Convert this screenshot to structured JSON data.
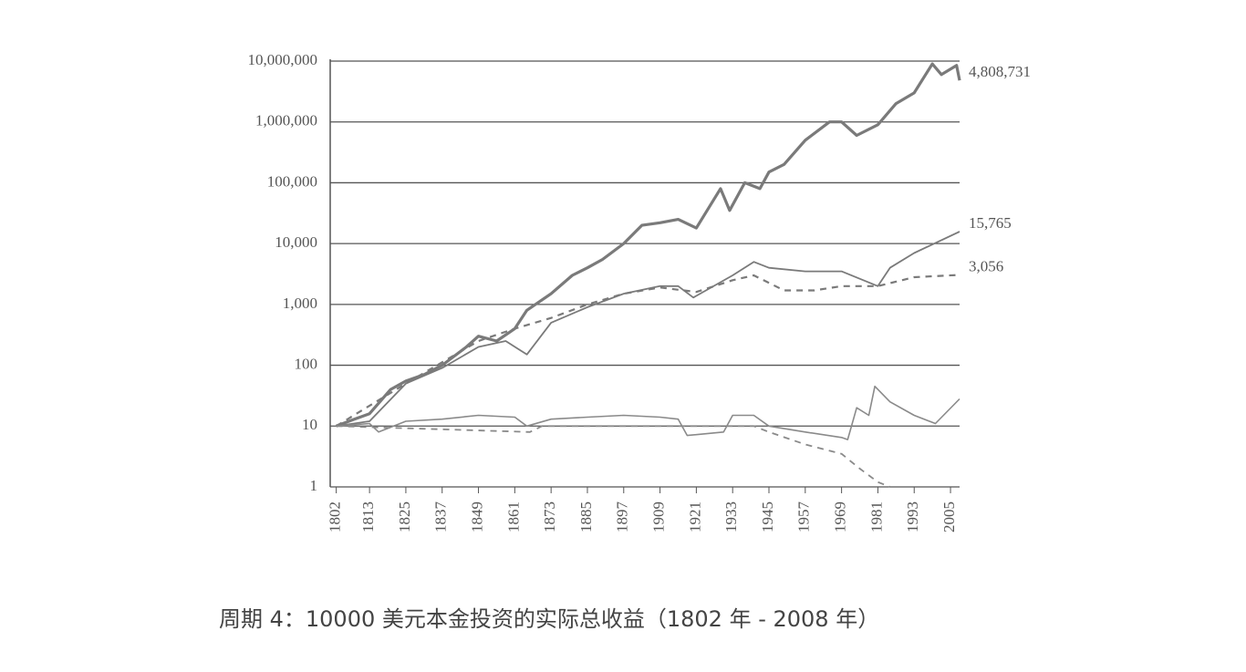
{
  "chart_data": {
    "type": "line",
    "caption": "周期 4：10000 美元本金投资的实际总收益（1802 年 - 2008 年）",
    "log_y": true,
    "grid": true,
    "color": "#7a7a7a",
    "xlim": [
      1800,
      2008
    ],
    "xticks": [
      1802,
      1813,
      1825,
      1837,
      1849,
      1861,
      1873,
      1885,
      1897,
      1909,
      1921,
      1933,
      1945,
      1957,
      1969,
      1981,
      1993,
      2005
    ],
    "ylim": [
      1,
      10000000
    ],
    "yticks": [
      1,
      10,
      100,
      {
        "value": 1000,
        "label": "1,000"
      },
      {
        "value": 10000,
        "label": "10,000"
      },
      {
        "value": 100000,
        "label": "100,000"
      },
      {
        "value": 1000000,
        "label": "1,000,000"
      },
      {
        "value": 10000000,
        "label": "10,000,000"
      }
    ],
    "series": [
      {
        "color": "#7a7a7a",
        "width": 3.2,
        "dash": false,
        "x": [
          1802,
          1808,
          1813,
          1820,
          1825,
          1831,
          1837,
          1845,
          1849,
          1855,
          1861,
          1865,
          1873,
          1880,
          1885,
          1890,
          1897,
          1903,
          1909,
          1915,
          1921,
          1929,
          1932,
          1937,
          1942,
          1945,
          1950,
          1957,
          1965,
          1969,
          1974,
          1981,
          1987,
          1993,
          1999,
          2002,
          2007,
          2008
        ],
        "values": [
          10,
          13,
          16,
          40,
          55,
          70,
          100,
          200,
          300,
          250,
          400,
          800,
          1500,
          3000,
          4000,
          5500,
          10000,
          20000,
          22000,
          25000,
          18000,
          80000,
          35000,
          100000,
          80000,
          150000,
          200000,
          500000,
          1000000,
          1000000,
          600000,
          900000,
          2000000,
          3000000,
          9000000,
          6000000,
          8500000,
          4808731
        ]
      },
      {
        "color": "#7a7a7a",
        "width": 1.8,
        "dash": false,
        "x": [
          1802,
          1813,
          1825,
          1837,
          1849,
          1858,
          1865,
          1873,
          1885,
          1897,
          1909,
          1915,
          1920,
          1933,
          1940,
          1945,
          1957,
          1969,
          1981,
          1985,
          1993,
          2008
        ],
        "values": [
          10,
          12,
          50,
          90,
          200,
          250,
          150,
          500,
          900,
          1500,
          2000,
          2000,
          1300,
          3000,
          5000,
          4000,
          3500,
          3500,
          2000,
          4000,
          7000,
          15765
        ]
      },
      {
        "color": "#7a7a7a",
        "width": 2.2,
        "dash": true,
        "x": [
          1802,
          1825,
          1849,
          1861,
          1873,
          1885,
          1897,
          1909,
          1921,
          1933,
          1940,
          1950,
          1960,
          1969,
          1981,
          1993,
          2008
        ],
        "values": [
          10,
          50,
          250,
          400,
          600,
          1000,
          1500,
          1900,
          1600,
          2500,
          3000,
          1700,
          1700,
          2000,
          2000,
          2800,
          3056
        ]
      },
      {
        "color": "#8a8a8a",
        "width": 1.6,
        "dash": false,
        "x": [
          1802,
          1813,
          1816,
          1825,
          1837,
          1849,
          1861,
          1865,
          1873,
          1885,
          1897,
          1909,
          1915,
          1918,
          1930,
          1933,
          1940,
          1945,
          1957,
          1969,
          1971,
          1974,
          1978,
          1980,
          1985,
          1993,
          2000,
          2008
        ],
        "values": [
          10,
          11,
          8,
          12,
          13,
          15,
          14,
          10,
          13,
          14,
          15,
          14,
          13,
          7,
          8,
          15,
          15,
          10,
          8,
          6.5,
          6,
          20,
          15,
          45,
          25,
          15,
          11,
          28
        ]
      },
      {
        "color": "#8a8a8a",
        "width": 1.8,
        "dash": true,
        "x": [
          1802,
          1866,
          1870,
          1940,
          1945,
          1957,
          1969,
          1975,
          1981,
          1985
        ],
        "values": [
          10,
          8,
          10,
          10,
          8,
          5,
          3.5,
          2,
          1.2,
          1
        ]
      }
    ],
    "annotations": [
      {
        "text": "4,808,731",
        "y": 4808731
      },
      {
        "text": "15,765",
        "y": 15765
      },
      {
        "text": "3,056",
        "y": 3056
      }
    ]
  }
}
